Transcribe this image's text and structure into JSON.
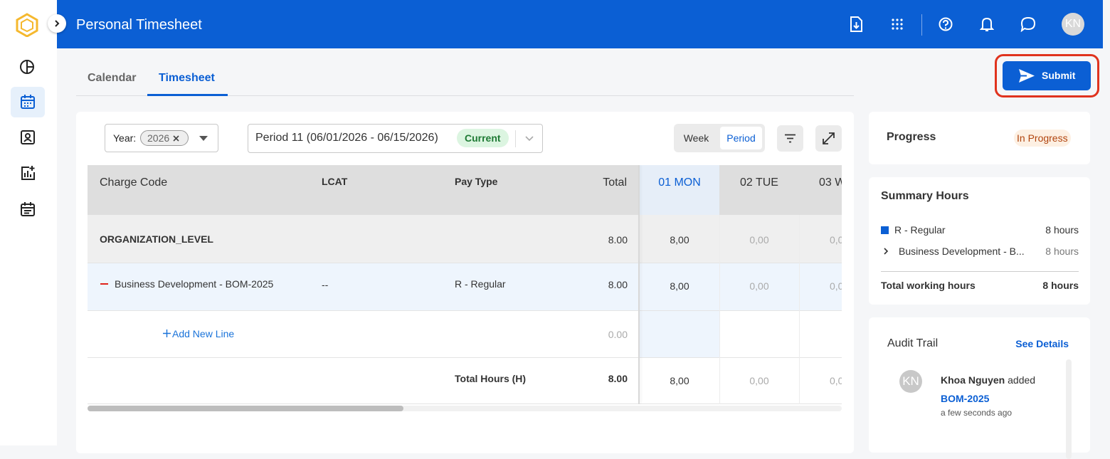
{
  "header": {
    "title": "Personal Timesheet",
    "avatar": "KN"
  },
  "tabs": [
    "Calendar",
    "Timesheet"
  ],
  "submit": "Submit",
  "filters": {
    "year_label": "Year:",
    "year": "2026",
    "period": "Period 11 (06/01/2026 - 06/15/2026)",
    "period_status": "Current",
    "views": [
      "Week",
      "Period"
    ]
  },
  "table": {
    "columns": [
      "Charge Code",
      "LCAT",
      "Pay Type",
      "Total",
      "01 MON",
      "02 TUE",
      "03 W"
    ],
    "organization": {
      "label": "ORGANIZATION_LEVEL",
      "total": "8.00",
      "days": [
        "8,00",
        "0,00",
        "0,0"
      ]
    },
    "line": {
      "label": "Business Development - BOM-2025",
      "lcat": "--",
      "pay_type": "R - Regular",
      "total": "8.00",
      "days": [
        "8,00",
        "0,00",
        "0,0"
      ]
    },
    "add_line": {
      "label": "Add New Line",
      "total": "0.00"
    },
    "totals": {
      "label": "Total Hours (H)",
      "total": "8.00",
      "days": [
        "8,00",
        "0,00",
        "0,0"
      ]
    }
  },
  "progress": {
    "title": "Progress",
    "status": "In Progress"
  },
  "summary": {
    "title": "Summary Hours",
    "rows": [
      {
        "label": "R - Regular",
        "hours": "8 hours"
      },
      {
        "label": "Business Development - B...",
        "hours": "8 hours"
      }
    ],
    "total_label": "Total working hours",
    "total": "8 hours"
  },
  "audit": {
    "title": "Audit Trail",
    "link": "See Details",
    "entries": [
      {
        "avatar": "KN",
        "user": "Khoa Nguyen",
        "action": "added",
        "target": "BOM-2025",
        "time": "a few seconds ago"
      }
    ]
  }
}
